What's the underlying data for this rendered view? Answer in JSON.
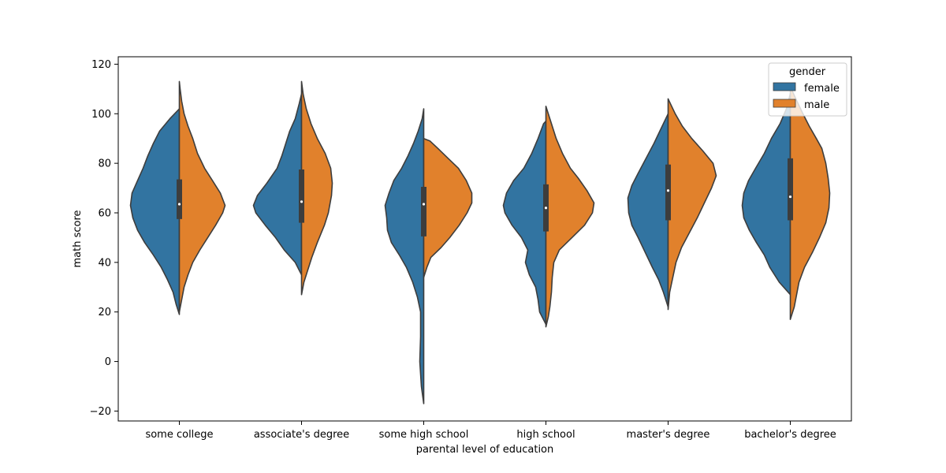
{
  "chart_data": {
    "type": "violin",
    "split": true,
    "xlabel": "parental level of education",
    "ylabel": "math score",
    "ylim": [
      -24,
      123
    ],
    "yticks": [
      -20,
      0,
      20,
      40,
      60,
      80,
      100,
      120
    ],
    "categories": [
      "some college",
      "associate's degree",
      "some high school",
      "high school",
      "master's degree",
      "bachelor's degree"
    ],
    "legend": {
      "title": "gender",
      "position": "top-right",
      "entries": [
        "female",
        "male"
      ]
    },
    "series": [
      {
        "name": "female",
        "color": "#3274a1",
        "side": "left",
        "groups": [
          {
            "profile": [
              [
                19,
                0
              ],
              [
                23,
                4
              ],
              [
                28,
                8
              ],
              [
                33,
                15
              ],
              [
                38,
                23
              ],
              [
                43,
                33
              ],
              [
                48,
                44
              ],
              [
                53,
                53
              ],
              [
                58,
                59
              ],
              [
                63,
                62
              ],
              [
                68,
                60
              ],
              [
                73,
                53
              ],
              [
                78,
                46
              ],
              [
                83,
                40
              ],
              [
                88,
                33
              ],
              [
                93,
                25
              ],
              [
                98,
                12
              ],
              [
                102,
                0
              ]
            ]
          },
          {
            "profile": [
              [
                35,
                0
              ],
              [
                40,
                8
              ],
              [
                45,
                22
              ],
              [
                50,
                33
              ],
              [
                55,
                46
              ],
              [
                60,
                58
              ],
              [
                63,
                61
              ],
              [
                67,
                56
              ],
              [
                72,
                44
              ],
              [
                78,
                31
              ],
              [
                83,
                25
              ],
              [
                88,
                20
              ],
              [
                93,
                15
              ],
              [
                98,
                8
              ],
              [
                104,
                3
              ],
              [
                108,
                0
              ]
            ]
          },
          {
            "profile": [
              [
                -17,
                0
              ],
              [
                -10,
                3
              ],
              [
                0,
                5
              ],
              [
                10,
                4
              ],
              [
                20,
                4
              ],
              [
                26,
                8
              ],
              [
                32,
                14
              ],
              [
                38,
                22
              ],
              [
                43,
                31
              ],
              [
                48,
                41
              ],
              [
                53,
                46
              ],
              [
                58,
                47
              ],
              [
                63,
                49
              ],
              [
                68,
                44
              ],
              [
                73,
                38
              ],
              [
                78,
                28
              ],
              [
                83,
                20
              ],
              [
                88,
                13
              ],
              [
                93,
                7
              ],
              [
                98,
                2
              ],
              [
                102,
                0
              ]
            ]
          },
          {
            "profile": [
              [
                15,
                0
              ],
              [
                20,
                8
              ],
              [
                25,
                10
              ],
              [
                30,
                13
              ],
              [
                35,
                21
              ],
              [
                40,
                26
              ],
              [
                45,
                23
              ],
              [
                50,
                31
              ],
              [
                55,
                43
              ],
              [
                60,
                52
              ],
              [
                63,
                54
              ],
              [
                68,
                50
              ],
              [
                73,
                41
              ],
              [
                78,
                28
              ],
              [
                84,
                18
              ],
              [
                90,
                10
              ],
              [
                96,
                3
              ],
              [
                97,
                0
              ]
            ]
          },
          {
            "profile": [
              [
                22,
                0
              ],
              [
                28,
                6
              ],
              [
                33,
                12
              ],
              [
                38,
                20
              ],
              [
                44,
                29
              ],
              [
                50,
                38
              ],
              [
                55,
                46
              ],
              [
                60,
                50
              ],
              [
                66,
                51
              ],
              [
                71,
                46
              ],
              [
                76,
                38
              ],
              [
                82,
                28
              ],
              [
                88,
                18
              ],
              [
                94,
                9
              ],
              [
                100,
                0
              ]
            ]
          },
          {
            "profile": [
              [
                27,
                0
              ],
              [
                32,
                14
              ],
              [
                38,
                26
              ],
              [
                43,
                33
              ],
              [
                48,
                43
              ],
              [
                53,
                52
              ],
              [
                58,
                59
              ],
              [
                63,
                61
              ],
              [
                68,
                59
              ],
              [
                73,
                53
              ],
              [
                78,
                44
              ],
              [
                84,
                33
              ],
              [
                90,
                24
              ],
              [
                96,
                13
              ],
              [
                102,
                5
              ],
              [
                108,
                0
              ]
            ]
          }
        ]
      },
      {
        "name": "male",
        "color": "#e1812c",
        "side": "right",
        "groups": [
          {
            "profile": [
              [
                20,
                0
              ],
              [
                25,
                3
              ],
              [
                30,
                6
              ],
              [
                35,
                11
              ],
              [
                40,
                17
              ],
              [
                45,
                26
              ],
              [
                50,
                36
              ],
              [
                55,
                46
              ],
              [
                60,
                55
              ],
              [
                63,
                58
              ],
              [
                68,
                52
              ],
              [
                73,
                42
              ],
              [
                78,
                32
              ],
              [
                84,
                23
              ],
              [
                90,
                17
              ],
              [
                95,
                11
              ],
              [
                100,
                6
              ],
              [
                105,
                3
              ],
              [
                110,
                1
              ],
              [
                113,
                0
              ]
            ]
          },
          {
            "profile": [
              [
                27,
                0
              ],
              [
                32,
                3
              ],
              [
                37,
                8
              ],
              [
                42,
                13
              ],
              [
                48,
                20
              ],
              [
                55,
                29
              ],
              [
                60,
                34
              ],
              [
                67,
                38
              ],
              [
                72,
                39
              ],
              [
                78,
                37
              ],
              [
                84,
                30
              ],
              [
                90,
                20
              ],
              [
                96,
                12
              ],
              [
                102,
                6
              ],
              [
                108,
                2
              ],
              [
                113,
                0
              ]
            ]
          },
          {
            "profile": [
              [
                34,
                0
              ],
              [
                38,
                4
              ],
              [
                42,
                9
              ],
              [
                46,
                22
              ],
              [
                50,
                33
              ],
              [
                55,
                45
              ],
              [
                60,
                55
              ],
              [
                64,
                61
              ],
              [
                68,
                61
              ],
              [
                73,
                54
              ],
              [
                78,
                44
              ],
              [
                82,
                31
              ],
              [
                86,
                18
              ],
              [
                89,
                8
              ],
              [
                90,
                0
              ]
            ]
          },
          {
            "profile": [
              [
                14,
                0
              ],
              [
                18,
                3
              ],
              [
                22,
                5
              ],
              [
                28,
                7
              ],
              [
                34,
                8
              ],
              [
                40,
                10
              ],
              [
                45,
                17
              ],
              [
                50,
                33
              ],
              [
                55,
                49
              ],
              [
                60,
                59
              ],
              [
                64,
                61
              ],
              [
                69,
                52
              ],
              [
                74,
                41
              ],
              [
                78,
                31
              ],
              [
                84,
                21
              ],
              [
                90,
                13
              ],
              [
                96,
                7
              ],
              [
                101,
                2
              ],
              [
                103,
                0
              ]
            ]
          },
          {
            "profile": [
              [
                21,
                0
              ],
              [
                28,
                2
              ],
              [
                34,
                6
              ],
              [
                40,
                10
              ],
              [
                46,
                17
              ],
              [
                52,
                27
              ],
              [
                58,
                37
              ],
              [
                64,
                46
              ],
              [
                70,
                55
              ],
              [
                75,
                61
              ],
              [
                80,
                57
              ],
              [
                85,
                44
              ],
              [
                90,
                30
              ],
              [
                95,
                18
              ],
              [
                100,
                9
              ],
              [
                104,
                3
              ],
              [
                106,
                0
              ]
            ]
          },
          {
            "profile": [
              [
                17,
                0
              ],
              [
                22,
                5
              ],
              [
                27,
                8
              ],
              [
                32,
                11
              ],
              [
                38,
                18
              ],
              [
                44,
                28
              ],
              [
                50,
                37
              ],
              [
                56,
                45
              ],
              [
                62,
                49
              ],
              [
                68,
                50
              ],
              [
                74,
                48
              ],
              [
                80,
                45
              ],
              [
                86,
                40
              ],
              [
                90,
                33
              ],
              [
                95,
                24
              ],
              [
                100,
                16
              ],
              [
                106,
                7
              ],
              [
                111,
                0
              ]
            ]
          }
        ]
      }
    ],
    "box": [
      {
        "q1": 57.5,
        "q3": 73.5,
        "median": 63.5
      },
      {
        "q1": 56.0,
        "q3": 77.5,
        "median": 64.5
      },
      {
        "q1": 50.5,
        "q3": 70.5,
        "median": 63.5
      },
      {
        "q1": 52.5,
        "q3": 71.5,
        "median": 62.0
      },
      {
        "q1": 57.0,
        "q3": 79.5,
        "median": 69.0
      },
      {
        "q1": 57.0,
        "q3": 82.0,
        "median": 66.5
      }
    ]
  }
}
